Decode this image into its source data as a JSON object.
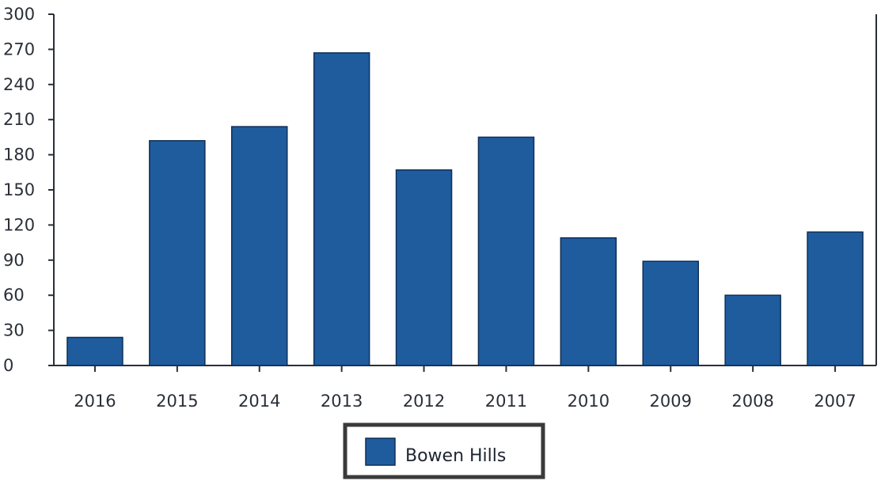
{
  "chart_data": {
    "type": "bar",
    "title": "",
    "xlabel": "",
    "ylabel": "",
    "categories": [
      "2016",
      "2015",
      "2014",
      "2013",
      "2012",
      "2011",
      "2010",
      "2009",
      "2008",
      "2007"
    ],
    "series": [
      {
        "name": "Bowen Hills",
        "color": "#1f5c9e",
        "values": [
          24,
          192,
          204,
          267,
          167,
          195,
          109,
          89,
          60,
          114
        ]
      }
    ],
    "ylim": [
      0,
      300
    ],
    "yticks": [
      0,
      30,
      60,
      90,
      120,
      150,
      180,
      210,
      240,
      270,
      300
    ],
    "grid": false,
    "legend_position": "bottom-center"
  }
}
